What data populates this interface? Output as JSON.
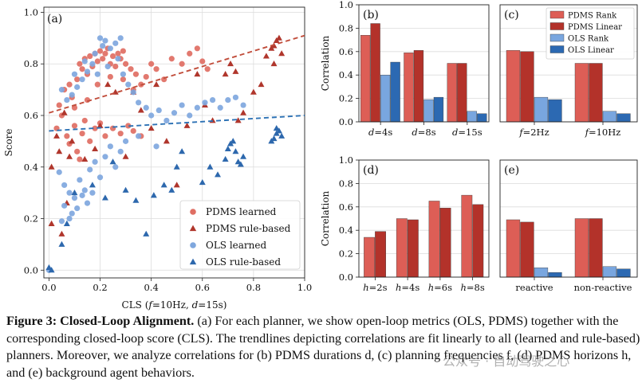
{
  "colors": {
    "pdms_learned": "#df6e63",
    "pdms_rule": "#b0362c",
    "ols_learned": "#7fa7de",
    "ols_rule": "#2d68ad",
    "pdms_rank": "#dd5e56",
    "pdms_linear": "#b3322a",
    "ols_rank": "#79a6df",
    "ols_linear": "#2c69b2",
    "trend_pdms": "#c14d3b",
    "trend_ols": "#2d72b5"
  },
  "chart_data": [
    {
      "id": "a",
      "panel_label": "(a)",
      "type": "scatter",
      "xlabel": "CLS (f=10Hz, d=15s)",
      "ylabel": "Score",
      "xlim": [
        -0.02,
        1.0
      ],
      "ylim": [
        -0.03,
        1.02
      ],
      "x_ticks": [
        "0.0",
        "0.2",
        "0.4",
        "0.6",
        "0.8",
        "1.0"
      ],
      "y_ticks": [
        "0.0",
        "0.2",
        "0.4",
        "0.6",
        "0.8",
        "1.0"
      ],
      "grid": true,
      "legend_position": "bottom-right",
      "trendlines": [
        {
          "name": "PDMS trend",
          "x": [
            0.0,
            1.0
          ],
          "y": [
            0.61,
            0.91
          ],
          "style": "dashed"
        },
        {
          "name": "OLS trend",
          "x": [
            0.0,
            1.0
          ],
          "y": [
            0.54,
            0.6
          ],
          "style": "dashed"
        }
      ],
      "series": [
        {
          "name": "PDMS learned",
          "marker": "circle",
          "points": [
            [
              0.06,
              0.7
            ],
            [
              0.08,
              0.72
            ],
            [
              0.09,
              0.67
            ],
            [
              0.11,
              0.74
            ],
            [
              0.12,
              0.8
            ],
            [
              0.13,
              0.78
            ],
            [
              0.14,
              0.82
            ],
            [
              0.15,
              0.76
            ],
            [
              0.16,
              0.83
            ],
            [
              0.17,
              0.79
            ],
            [
              0.18,
              0.84
            ],
            [
              0.19,
              0.81
            ],
            [
              0.2,
              0.85
            ],
            [
              0.21,
              0.82
            ],
            [
              0.22,
              0.84
            ],
            [
              0.23,
              0.86
            ],
            [
              0.24,
              0.8
            ],
            [
              0.25,
              0.83
            ],
            [
              0.26,
              0.79
            ],
            [
              0.27,
              0.84
            ],
            [
              0.28,
              0.82
            ],
            [
              0.29,
              0.85
            ],
            [
              0.3,
              0.8
            ],
            [
              0.32,
              0.78
            ],
            [
              0.34,
              0.76
            ],
            [
              0.36,
              0.72
            ],
            [
              0.38,
              0.75
            ],
            [
              0.4,
              0.8
            ],
            [
              0.42,
              0.78
            ],
            [
              0.45,
              0.74
            ],
            [
              0.48,
              0.82
            ],
            [
              0.52,
              0.8
            ],
            [
              0.55,
              0.84
            ],
            [
              0.58,
              0.86
            ],
            [
              0.6,
              0.81
            ],
            [
              0.62,
              0.78
            ],
            [
              0.03,
              0.55
            ],
            [
              0.05,
              0.6
            ],
            [
              0.07,
              0.52
            ],
            [
              0.08,
              0.49
            ],
            [
              0.1,
              0.56
            ],
            [
              0.11,
              0.46
            ],
            [
              0.13,
              0.53
            ],
            [
              0.14,
              0.58
            ],
            [
              0.16,
              0.5
            ],
            [
              0.18,
              0.55
            ],
            [
              0.2,
              0.57
            ],
            [
              0.22,
              0.52
            ],
            [
              0.25,
              0.55
            ],
            [
              0.28,
              0.53
            ],
            [
              0.31,
              0.56
            ],
            [
              0.33,
              0.54
            ],
            [
              0.36,
              0.52
            ],
            [
              0.04,
              0.64
            ],
            [
              0.1,
              0.63
            ],
            [
              0.15,
              0.66
            ],
            [
              0.19,
              0.72
            ],
            [
              0.24,
              0.75
            ],
            [
              0.29,
              0.74
            ],
            [
              0.33,
              0.7
            ],
            [
              0.12,
              0.43
            ]
          ]
        },
        {
          "name": "PDMS rule-based",
          "marker": "triangle",
          "points": [
            [
              0.01,
              0.4
            ],
            [
              0.01,
              0.18
            ],
            [
              0.03,
              0.52
            ],
            [
              0.04,
              0.46
            ],
            [
              0.05,
              0.14
            ],
            [
              0.06,
              0.61
            ],
            [
              0.07,
              0.26
            ],
            [
              0.08,
              0.44
            ],
            [
              0.09,
              0.5
            ],
            [
              0.14,
              0.43
            ],
            [
              0.18,
              0.47
            ],
            [
              0.2,
              0.56
            ],
            [
              0.23,
              0.72
            ],
            [
              0.26,
              0.69
            ],
            [
              0.3,
              0.44
            ],
            [
              0.33,
              0.69
            ],
            [
              0.36,
              0.62
            ],
            [
              0.4,
              0.55
            ],
            [
              0.42,
              0.72
            ],
            [
              0.46,
              0.5
            ],
            [
              0.5,
              0.33
            ],
            [
              0.54,
              0.56
            ],
            [
              0.58,
              0.76
            ],
            [
              0.61,
              0.64
            ],
            [
              0.64,
              0.58
            ],
            [
              0.69,
              0.76
            ],
            [
              0.71,
              0.8
            ],
            [
              0.73,
              0.77
            ],
            [
              0.74,
              0.58
            ],
            [
              0.76,
              0.61
            ],
            [
              0.8,
              0.69
            ],
            [
              0.83,
              0.72
            ],
            [
              0.85,
              0.83
            ],
            [
              0.87,
              0.86
            ],
            [
              0.88,
              0.87
            ],
            [
              0.89,
              0.89
            ],
            [
              0.9,
              0.9
            ],
            [
              0.91,
              0.84
            ],
            [
              0.88,
              0.8
            ]
          ]
        },
        {
          "name": "OLS learned",
          "marker": "circle",
          "points": [
            [
              0.2,
              0.9
            ],
            [
              0.21,
              0.87
            ],
            [
              0.22,
              0.89
            ],
            [
              0.24,
              0.86
            ],
            [
              0.26,
              0.88
            ],
            [
              0.28,
              0.9
            ],
            [
              0.18,
              0.84
            ],
            [
              0.17,
              0.8
            ],
            [
              0.15,
              0.77
            ],
            [
              0.13,
              0.74
            ],
            [
              0.11,
              0.71
            ],
            [
              0.09,
              0.68
            ],
            [
              0.07,
              0.66
            ],
            [
              0.05,
              0.7
            ],
            [
              0.1,
              0.76
            ],
            [
              0.14,
              0.81
            ],
            [
              0.19,
              0.76
            ],
            [
              0.23,
              0.79
            ],
            [
              0.27,
              0.82
            ],
            [
              0.29,
              0.76
            ],
            [
              0.31,
              0.72
            ],
            [
              0.33,
              0.69
            ],
            [
              0.35,
              0.65
            ],
            [
              0.38,
              0.63
            ],
            [
              0.4,
              0.6
            ],
            [
              0.43,
              0.62
            ],
            [
              0.46,
              0.58
            ],
            [
              0.49,
              0.61
            ],
            [
              0.52,
              0.64
            ],
            [
              0.55,
              0.6
            ],
            [
              0.58,
              0.63
            ],
            [
              0.61,
              0.65
            ],
            [
              0.64,
              0.66
            ],
            [
              0.67,
              0.63
            ],
            [
              0.7,
              0.66
            ],
            [
              0.73,
              0.67
            ],
            [
              0.76,
              0.64
            ],
            [
              0.04,
              0.38
            ],
            [
              0.06,
              0.33
            ],
            [
              0.08,
              0.3
            ],
            [
              0.09,
              0.22
            ],
            [
              0.1,
              0.28
            ],
            [
              0.12,
              0.35
            ],
            [
              0.14,
              0.31
            ],
            [
              0.16,
              0.39
            ],
            [
              0.18,
              0.42
            ],
            [
              0.2,
              0.36
            ],
            [
              0.22,
              0.44
            ],
            [
              0.24,
              0.48
            ],
            [
              0.26,
              0.4
            ],
            [
              0.28,
              0.46
            ],
            [
              0.05,
              0.19
            ],
            [
              0.06,
              0.25
            ],
            [
              0.08,
              0.2
            ],
            [
              0.11,
              0.24
            ],
            [
              0.13,
              0.29
            ],
            [
              0.15,
              0.26
            ],
            [
              0.17,
              0.3
            ],
            [
              0.3,
              0.5
            ],
            [
              0.35,
              0.52
            ],
            [
              0.42,
              0.48
            ],
            [
              0.0,
              0.0
            ]
          ]
        },
        {
          "name": "OLS rule-based",
          "marker": "triangle",
          "points": [
            [
              0.0,
              0.01
            ],
            [
              0.01,
              0.0
            ],
            [
              0.05,
              0.1
            ],
            [
              0.07,
              0.18
            ],
            [
              0.1,
              0.3
            ],
            [
              0.17,
              0.33
            ],
            [
              0.22,
              0.28
            ],
            [
              0.25,
              0.42
            ],
            [
              0.3,
              0.31
            ],
            [
              0.34,
              0.27
            ],
            [
              0.38,
              0.14
            ],
            [
              0.41,
              0.29
            ],
            [
              0.45,
              0.33
            ],
            [
              0.48,
              0.31
            ],
            [
              0.5,
              0.4
            ],
            [
              0.52,
              0.46
            ],
            [
              0.6,
              0.34
            ],
            [
              0.63,
              0.4
            ],
            [
              0.66,
              0.37
            ],
            [
              0.69,
              0.43
            ],
            [
              0.7,
              0.47
            ],
            [
              0.71,
              0.49
            ],
            [
              0.72,
              0.5
            ],
            [
              0.73,
              0.46
            ],
            [
              0.74,
              0.42
            ],
            [
              0.75,
              0.41
            ],
            [
              0.76,
              0.44
            ],
            [
              0.88,
              0.51
            ],
            [
              0.89,
              0.53
            ],
            [
              0.9,
              0.54
            ],
            [
              0.91,
              0.52
            ],
            [
              0.89,
              0.55
            ],
            [
              0.87,
              0.5
            ]
          ]
        }
      ]
    },
    {
      "id": "b",
      "panel_label": "(b)",
      "type": "bar",
      "ylabel": "Correlation",
      "ylim": [
        0,
        1.0
      ],
      "y_ticks": [
        "0.0",
        "0.2",
        "0.4",
        "0.6",
        "0.8",
        "1.0"
      ],
      "categories": [
        "d=4s",
        "d=8s",
        "d=15s"
      ],
      "series": [
        {
          "name": "PDMS Rank",
          "values": [
            0.74,
            0.59,
            0.5
          ]
        },
        {
          "name": "PDMS Linear",
          "values": [
            0.84,
            0.61,
            0.5
          ]
        },
        {
          "name": "OLS Rank",
          "values": [
            0.4,
            0.19,
            0.09
          ]
        },
        {
          "name": "OLS Linear",
          "values": [
            0.51,
            0.21,
            0.07
          ]
        }
      ]
    },
    {
      "id": "c",
      "panel_label": "(c)",
      "type": "bar",
      "ylabel": "",
      "ylim": [
        0,
        1.0
      ],
      "categories": [
        "f=2Hz",
        "f=10Hz"
      ],
      "legend": [
        "PDMS Rank",
        "PDMS Linear",
        "OLS Rank",
        "OLS Linear"
      ],
      "series": [
        {
          "name": "PDMS Rank",
          "values": [
            0.61,
            0.5
          ]
        },
        {
          "name": "PDMS Linear",
          "values": [
            0.6,
            0.5
          ]
        },
        {
          "name": "OLS Rank",
          "values": [
            0.21,
            0.09
          ]
        },
        {
          "name": "OLS Linear",
          "values": [
            0.19,
            0.07
          ]
        }
      ]
    },
    {
      "id": "d",
      "panel_label": "(d)",
      "type": "bar",
      "ylabel": "Correlation",
      "ylim": [
        0,
        1.0
      ],
      "y_ticks": [
        "0.0",
        "0.2",
        "0.4",
        "0.6",
        "0.8",
        "1.0"
      ],
      "categories": [
        "h=2s",
        "h=4s",
        "h=6s",
        "h=8s"
      ],
      "series": [
        {
          "name": "PDMS Rank",
          "values": [
            0.34,
            0.5,
            0.65,
            0.7
          ]
        },
        {
          "name": "PDMS Linear",
          "values": [
            0.39,
            0.49,
            0.59,
            0.62
          ]
        }
      ]
    },
    {
      "id": "e",
      "panel_label": "(e)",
      "type": "bar",
      "ylabel": "",
      "ylim": [
        0,
        1.0
      ],
      "categories": [
        "reactive",
        "non-reactive"
      ],
      "series": [
        {
          "name": "PDMS Rank",
          "values": [
            0.49,
            0.5
          ]
        },
        {
          "name": "PDMS Linear",
          "values": [
            0.47,
            0.5
          ]
        },
        {
          "name": "OLS Rank",
          "values": [
            0.08,
            0.09
          ]
        },
        {
          "name": "OLS Linear",
          "values": [
            0.04,
            0.07
          ]
        }
      ]
    }
  ],
  "caption": {
    "figure_label": "Figure 3:",
    "title": "Closed-Loop Alignment.",
    "text": "(a) For each planner, we show open-loop metrics (OLS, PDMS) together with the corresponding closed-loop score (CLS). The trendlines depicting correlations are fit linearly to all (learned and rule-based) planners. Moreover, we analyze correlations for (b) PDMS durations d, (c) planning frequencies f, (d) PDMS horizons h, and (e) background agent behaviors."
  },
  "watermark": "公众号 · 自动驾驶之心"
}
